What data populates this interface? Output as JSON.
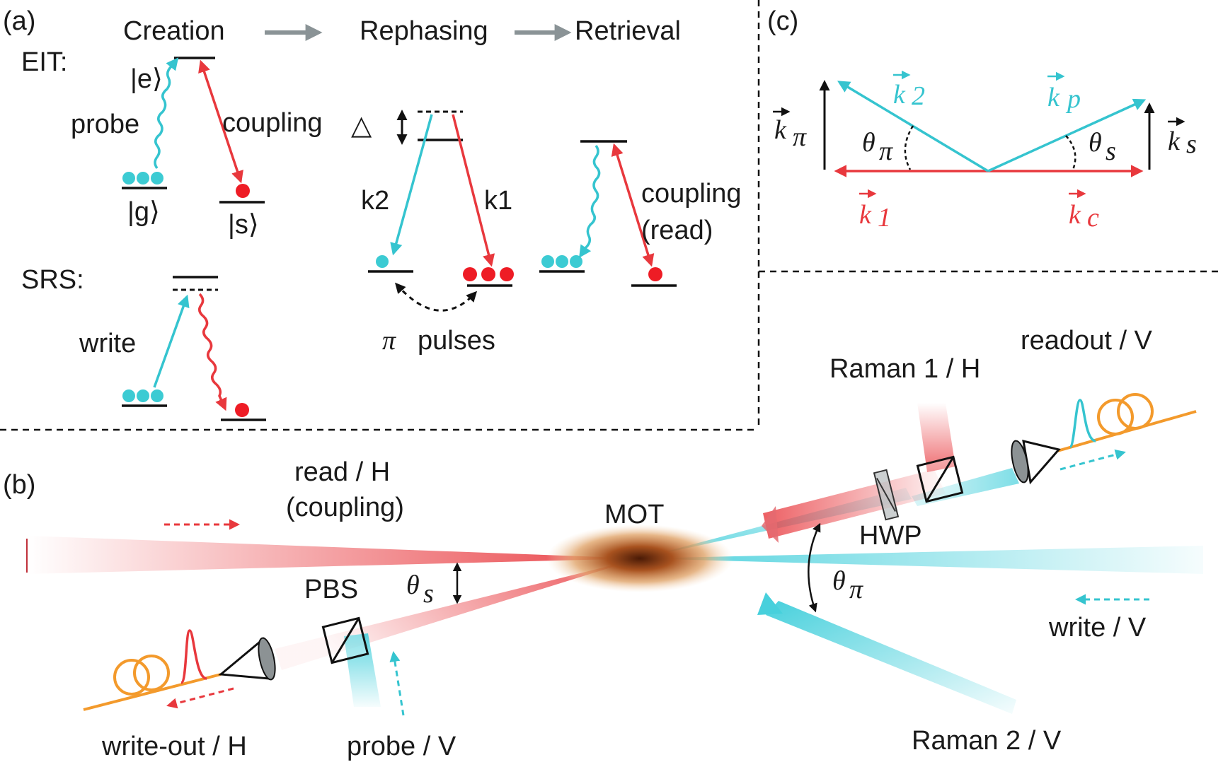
{
  "panel_a": {
    "tag": "(a)",
    "stages": {
      "creation": "Creation",
      "rephasing": "Rephasing",
      "retrieval": "Retrieval"
    },
    "eit_label": "EIT:",
    "srs_label": "SRS:",
    "state_e": "|e⟩",
    "state_g": "|g⟩",
    "state_s": "|s⟩",
    "probe": "probe",
    "coupling": "coupling",
    "delta": "△",
    "k2": "k2",
    "k1": "k1",
    "coupling_read_1": "coupling",
    "coupling_read_2": "(read)",
    "write": "write",
    "pi_symbol": "π",
    "pulses": "pulses"
  },
  "panel_b": {
    "tag": "(b)",
    "read_h_1": "read / H",
    "read_h_2": "(coupling)",
    "mot": "MOT",
    "pbs": "PBS",
    "hwp": "HWP",
    "theta": "θ",
    "sub_s": "s",
    "sub_pi": "π",
    "raman1": "Raman 1 / H",
    "raman2": "Raman 2 / V",
    "readout": "readout / V",
    "write_v": "write / V",
    "write_out": "write-out / H",
    "probe_v": "probe / V"
  },
  "panel_c": {
    "tag": "(c)",
    "k": "k",
    "sub_pi": "π",
    "sub_2": "2",
    "sub_p": "p",
    "sub_s": "s",
    "sub_1": "1",
    "sub_c": "c",
    "theta": "θ"
  },
  "colors": {
    "cyan": "#35c4cf",
    "red": "#e8383d",
    "orange": "#f39a2c",
    "black": "#111111"
  }
}
